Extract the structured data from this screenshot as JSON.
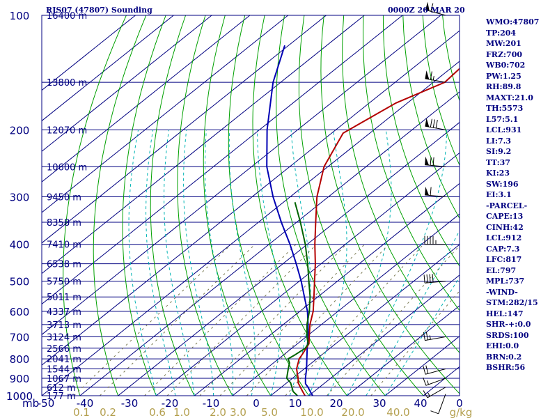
{
  "header": {
    "station": "RJS07 (47807) Sounding",
    "time": "0000Z 26 MAR 20"
  },
  "stats": [
    "WMO:47807",
    "TP:204",
    "MW:201",
    "FRZ:700",
    "WB0:702",
    "PW:1.25",
    "RH:89.8",
    "MAXT:21.0",
    "TH:5573",
    "L57:5.1",
    "LCL:931",
    "LI:7.3",
    "SI:9.2",
    "TT:37",
    "KI:23",
    "SW:196",
    "EI:3.1",
    "-PARCEL-",
    "CAPE:13",
    "CINH:42",
    "LCL:912",
    "CAP:7.3",
    "LFC:817",
    "EL:797",
    "MPL:737",
    "-WIND-",
    "STM:282/15",
    "HEL:147",
    "SHR-+:0.0",
    "SRDS:100",
    "EHI:0.0",
    "BRN:0.2",
    "BSHR:56"
  ],
  "colors": {
    "isobar": "#000080",
    "isotherm": "#000080",
    "dry_adiabat": "#00a000",
    "moist_adiabat": "#00b4b4",
    "mixing_ratio": "#787850",
    "temperature": "#b40000",
    "dewpoint": "#006400",
    "parcel": "#0000b4",
    "axis_text": "#000080",
    "mixing_text": "#b4a050"
  },
  "chart_data": {
    "type": "skew-t",
    "pressure_unit_label": "mb",
    "pressure_range": [
      1000,
      100
    ],
    "temperature_range": [
      -50,
      0
    ],
    "pressure_labels": [
      100,
      200,
      300,
      400,
      500,
      600,
      700,
      800,
      900,
      1000
    ],
    "temperature_labels": [
      "-50",
      "-40",
      "-30",
      "-20",
      "-10",
      "0",
      "10",
      "20",
      "30",
      "40",
      "0"
    ],
    "mixing_ratio_labels": [
      "0.1",
      "0.2",
      "0.6",
      "1.0",
      "2.0",
      "3.0",
      "5.0",
      "10.0",
      "20.0",
      "40.0"
    ],
    "mixing_ratio_unit": "g/kg",
    "heights": [
      {
        "p": 100,
        "label": "16400 m"
      },
      {
        "p": 150,
        "label": "13800 m"
      },
      {
        "p": 200,
        "label": "12070 m"
      },
      {
        "p": 250,
        "label": "10600 m"
      },
      {
        "p": 300,
        "label": "9450 m"
      },
      {
        "p": 350,
        "label": "8358 m"
      },
      {
        "p": 400,
        "label": "7410 m"
      },
      {
        "p": 450,
        "label": "6538 m"
      },
      {
        "p": 500,
        "label": "5750 m"
      },
      {
        "p": 550,
        "label": "5011 m"
      },
      {
        "p": 600,
        "label": "4337 m"
      },
      {
        "p": 650,
        "label": "3713 m"
      },
      {
        "p": 700,
        "label": "3124 m"
      },
      {
        "p": 750,
        "label": "2566 m"
      },
      {
        "p": 800,
        "label": "2041 m"
      },
      {
        "p": 850,
        "label": "1544 m"
      },
      {
        "p": 900,
        "label": "1067 m"
      },
      {
        "p": 950,
        "label": "612 m"
      },
      {
        "p": 1000,
        "label": "177 m"
      }
    ],
    "temperature_profile": [
      {
        "p": 1000,
        "t": 19.0
      },
      {
        "p": 975,
        "t": 17.0
      },
      {
        "p": 950,
        "t": 15.0
      },
      {
        "p": 925,
        "t": 13.0
      },
      {
        "p": 900,
        "t": 11.5
      },
      {
        "p": 850,
        "t": 8.0
      },
      {
        "p": 800,
        "t": 5.4
      },
      {
        "p": 780,
        "t": 4.8
      },
      {
        "p": 730,
        "t": 3.0
      },
      {
        "p": 700,
        "t": 0.8
      },
      {
        "p": 650,
        "t": -3.0
      },
      {
        "p": 600,
        "t": -6.5
      },
      {
        "p": 550,
        "t": -11.0
      },
      {
        "p": 500,
        "t": -16.0
      },
      {
        "p": 450,
        "t": -21.5
      },
      {
        "p": 400,
        "t": -28.0
      },
      {
        "p": 350,
        "t": -35.0
      },
      {
        "p": 300,
        "t": -43.0
      },
      {
        "p": 250,
        "t": -51.0
      },
      {
        "p": 204,
        "t": -57.0
      },
      {
        "p": 170,
        "t": -53.0
      },
      {
        "p": 150,
        "t": -47.0
      },
      {
        "p": 130,
        "t": -48.0
      },
      {
        "p": 110,
        "t": -48.0
      },
      {
        "p": 100,
        "t": -45.0
      }
    ],
    "dewpoint_profile": [
      {
        "p": 1000,
        "t": 17.0
      },
      {
        "p": 975,
        "t": 14.5
      },
      {
        "p": 950,
        "t": 12.8
      },
      {
        "p": 925,
        "t": 11.0
      },
      {
        "p": 900,
        "t": 8.5
      },
      {
        "p": 850,
        "t": 5.8
      },
      {
        "p": 820,
        "t": 4.2
      },
      {
        "p": 800,
        "t": 2.5
      },
      {
        "p": 780,
        "t": 3.0
      },
      {
        "p": 750,
        "t": 3.5
      },
      {
        "p": 730,
        "t": 2.8
      },
      {
        "p": 700,
        "t": 0.2
      },
      {
        "p": 650,
        "t": -3.8
      },
      {
        "p": 600,
        "t": -7.5
      },
      {
        "p": 550,
        "t": -12.0
      },
      {
        "p": 500,
        "t": -17.5
      },
      {
        "p": 450,
        "t": -23.5
      },
      {
        "p": 400,
        "t": -30.5
      },
      {
        "p": 350,
        "t": -39.0
      },
      {
        "p": 310,
        "t": -47.0
      }
    ],
    "parcel_profile": [
      {
        "p": 1000,
        "t": 21.0
      },
      {
        "p": 975,
        "t": 19.0
      },
      {
        "p": 950,
        "t": 17.0
      },
      {
        "p": 930,
        "t": 15.2
      },
      {
        "p": 900,
        "t": 13.4
      },
      {
        "p": 850,
        "t": 10.6
      },
      {
        "p": 800,
        "t": 7.4
      },
      {
        "p": 750,
        "t": 4.0
      },
      {
        "p": 700,
        "t": 0.5
      },
      {
        "p": 650,
        "t": -3.5
      },
      {
        "p": 600,
        "t": -8.0
      },
      {
        "p": 550,
        "t": -13.5
      },
      {
        "p": 500,
        "t": -19.5
      },
      {
        "p": 450,
        "t": -26.5
      },
      {
        "p": 400,
        "t": -34.5
      },
      {
        "p": 350,
        "t": -44.0
      },
      {
        "p": 300,
        "t": -54.5
      },
      {
        "p": 250,
        "t": -66.0
      },
      {
        "p": 200,
        "t": -78.0
      },
      {
        "p": 150,
        "t": -92.0
      },
      {
        "p": 120,
        "t": -101.0
      }
    ],
    "wind_barbs": [
      {
        "p": 990,
        "dir": 200,
        "kt": 10
      },
      {
        "p": 950,
        "dir": 240,
        "kt": 15
      },
      {
        "p": 900,
        "dir": 250,
        "kt": 15
      },
      {
        "p": 850,
        "dir": 255,
        "kt": 20
      },
      {
        "p": 700,
        "dir": 260,
        "kt": 25
      },
      {
        "p": 500,
        "dir": 265,
        "kt": 40
      },
      {
        "p": 400,
        "dir": 270,
        "kt": 45
      },
      {
        "p": 300,
        "dir": 275,
        "kt": 60
      },
      {
        "p": 250,
        "dir": 275,
        "kt": 70
      },
      {
        "p": 200,
        "dir": 280,
        "kt": 80
      },
      {
        "p": 150,
        "dir": 280,
        "kt": 65
      },
      {
        "p": 100,
        "dir": 285,
        "kt": 60
      }
    ]
  }
}
